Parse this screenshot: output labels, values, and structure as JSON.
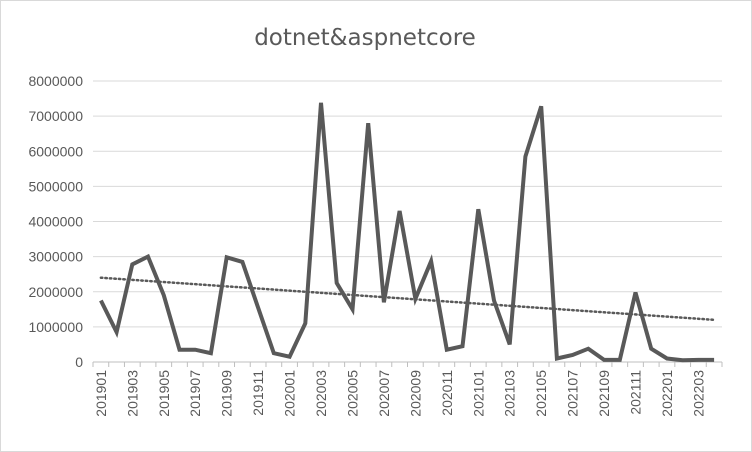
{
  "chart_data": {
    "type": "line",
    "title": "dotnet&aspnetcore",
    "xlabel": "",
    "ylabel": "",
    "ylim": [
      0,
      8000000
    ],
    "yticks": [
      0,
      1000000,
      2000000,
      3000000,
      4000000,
      5000000,
      6000000,
      7000000,
      8000000
    ],
    "ytick_labels": [
      "0",
      "1000000",
      "2000000",
      "3000000",
      "4000000",
      "5000000",
      "6000000",
      "7000000",
      "8000000"
    ],
    "grid": true,
    "legend": "none",
    "x": [
      "201901",
      "201902",
      "201903",
      "201904",
      "201905",
      "201906",
      "201907",
      "201908",
      "201909",
      "201910",
      "201911",
      "201912",
      "202001",
      "202002",
      "202003",
      "202004",
      "202005",
      "202006",
      "202007",
      "202008",
      "202009",
      "202010",
      "202011",
      "202012",
      "202101",
      "202102",
      "202103",
      "202104",
      "202105",
      "202106",
      "202107",
      "202108",
      "202109",
      "202110",
      "202111",
      "202112",
      "202201",
      "202202",
      "202203",
      "202204"
    ],
    "xtick_labels": [
      "201901",
      "201903",
      "201905",
      "201907",
      "201909",
      "201911",
      "202001",
      "202003",
      "202005",
      "202007",
      "202009",
      "202011",
      "202101",
      "202103",
      "202105",
      "202107",
      "202109",
      "202111",
      "202201",
      "202203"
    ],
    "series": [
      {
        "values": [
          1750000,
          850000,
          2780000,
          3000000,
          1900000,
          350000,
          350000,
          250000,
          2980000,
          2850000,
          1550000,
          250000,
          150000,
          1100000,
          7380000,
          2250000,
          1500000,
          6800000,
          1700000,
          4300000,
          1800000,
          2870000,
          350000,
          450000,
          4350000,
          1750000,
          500000,
          5850000,
          7280000,
          100000,
          200000,
          380000,
          60000,
          60000,
          1980000,
          380000,
          100000,
          50000,
          60000,
          60000
        ],
        "color": "#595959"
      }
    ],
    "trendline": {
      "style": "dotted",
      "start": 2400000,
      "end": 1200000,
      "color": "#595959"
    }
  }
}
